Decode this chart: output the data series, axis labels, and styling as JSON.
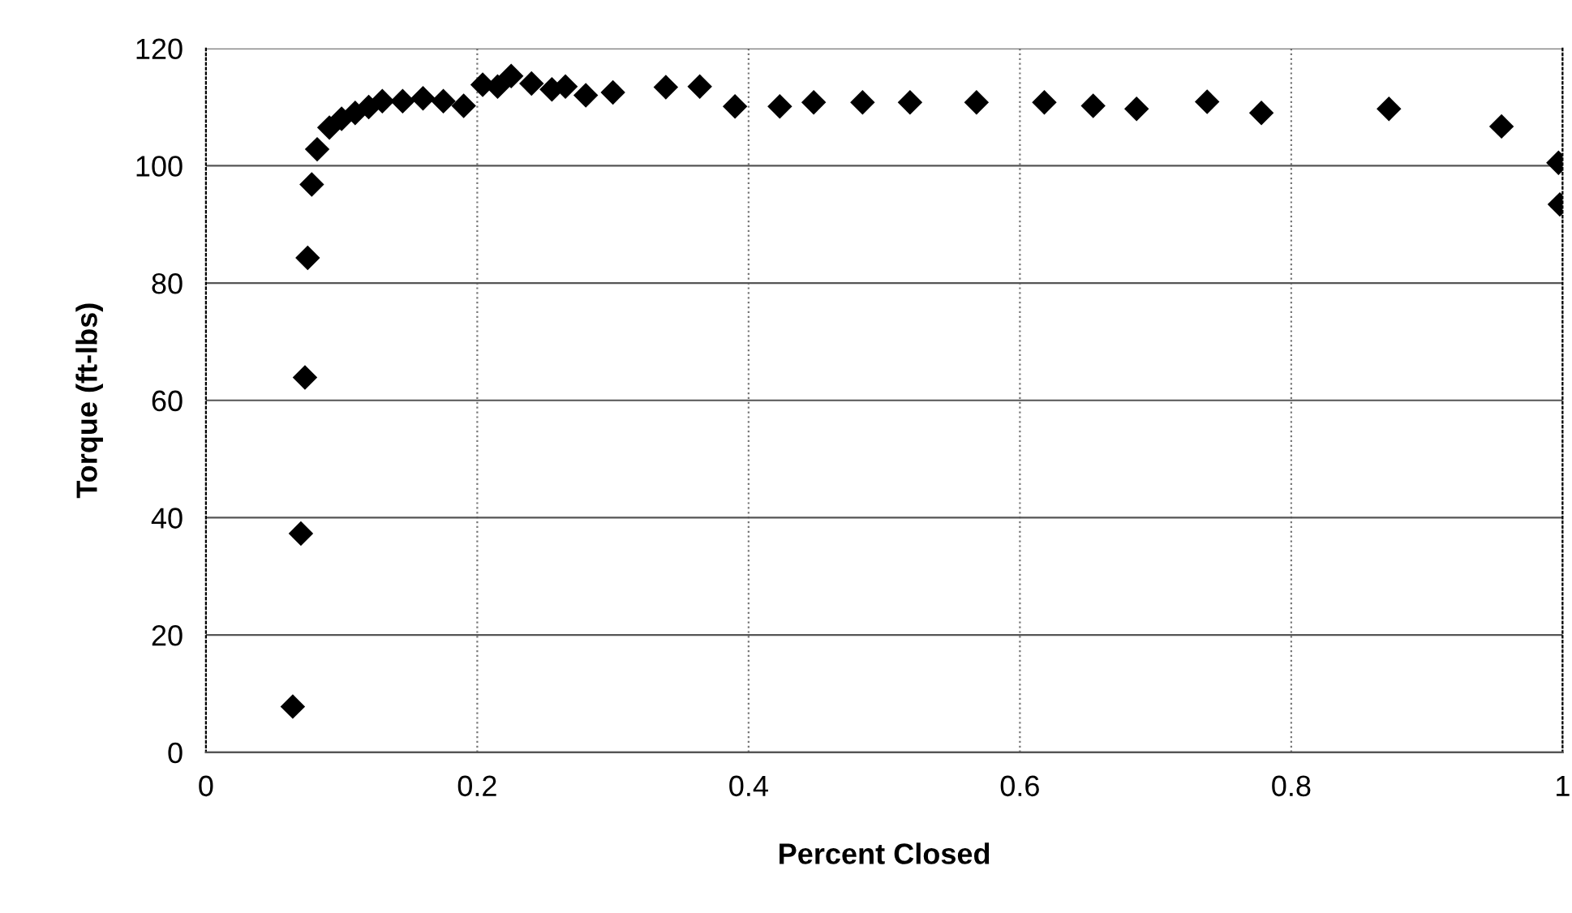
{
  "chart_data": {
    "type": "scatter",
    "xlabel": "Percent Closed",
    "ylabel": "Torque (ft-lbs)",
    "marker": "diamond",
    "grid": true,
    "xlim": [
      0,
      1
    ],
    "xticks": [
      0,
      0.2,
      0.4,
      0.6,
      0.8,
      1
    ],
    "ylim": [
      0,
      120
    ],
    "yticks": [
      0,
      20,
      40,
      60,
      80,
      100,
      120
    ],
    "series": [
      {
        "color": "#000000",
        "x": [
          0.064,
          0.07,
          0.073,
          0.075,
          0.078,
          0.082,
          0.091,
          0.1,
          0.11,
          0.12,
          0.13,
          0.145,
          0.16,
          0.175,
          0.19,
          0.204,
          0.215,
          0.225,
          0.24,
          0.255,
          0.265,
          0.28,
          0.3,
          0.339,
          0.364,
          0.39,
          0.423,
          0.448,
          0.484,
          0.519,
          0.568,
          0.618,
          0.654,
          0.686,
          0.738,
          0.778,
          0.872,
          0.955,
          0.997,
          0.998
        ],
        "values": [
          7.8,
          37.3,
          63.9,
          84.3,
          96.8,
          102.8,
          106.5,
          108,
          109,
          110,
          111,
          111,
          111.5,
          111,
          110.2,
          113.8,
          113.5,
          115.3,
          114,
          113,
          113.5,
          112,
          112.5,
          113.4,
          113.5,
          110.1,
          110.1,
          110.8,
          110.8,
          110.8,
          110.8,
          110.8,
          110.2,
          109.7,
          110.9,
          109,
          109.7,
          106.7,
          100.5,
          93.4
        ]
      }
    ]
  }
}
